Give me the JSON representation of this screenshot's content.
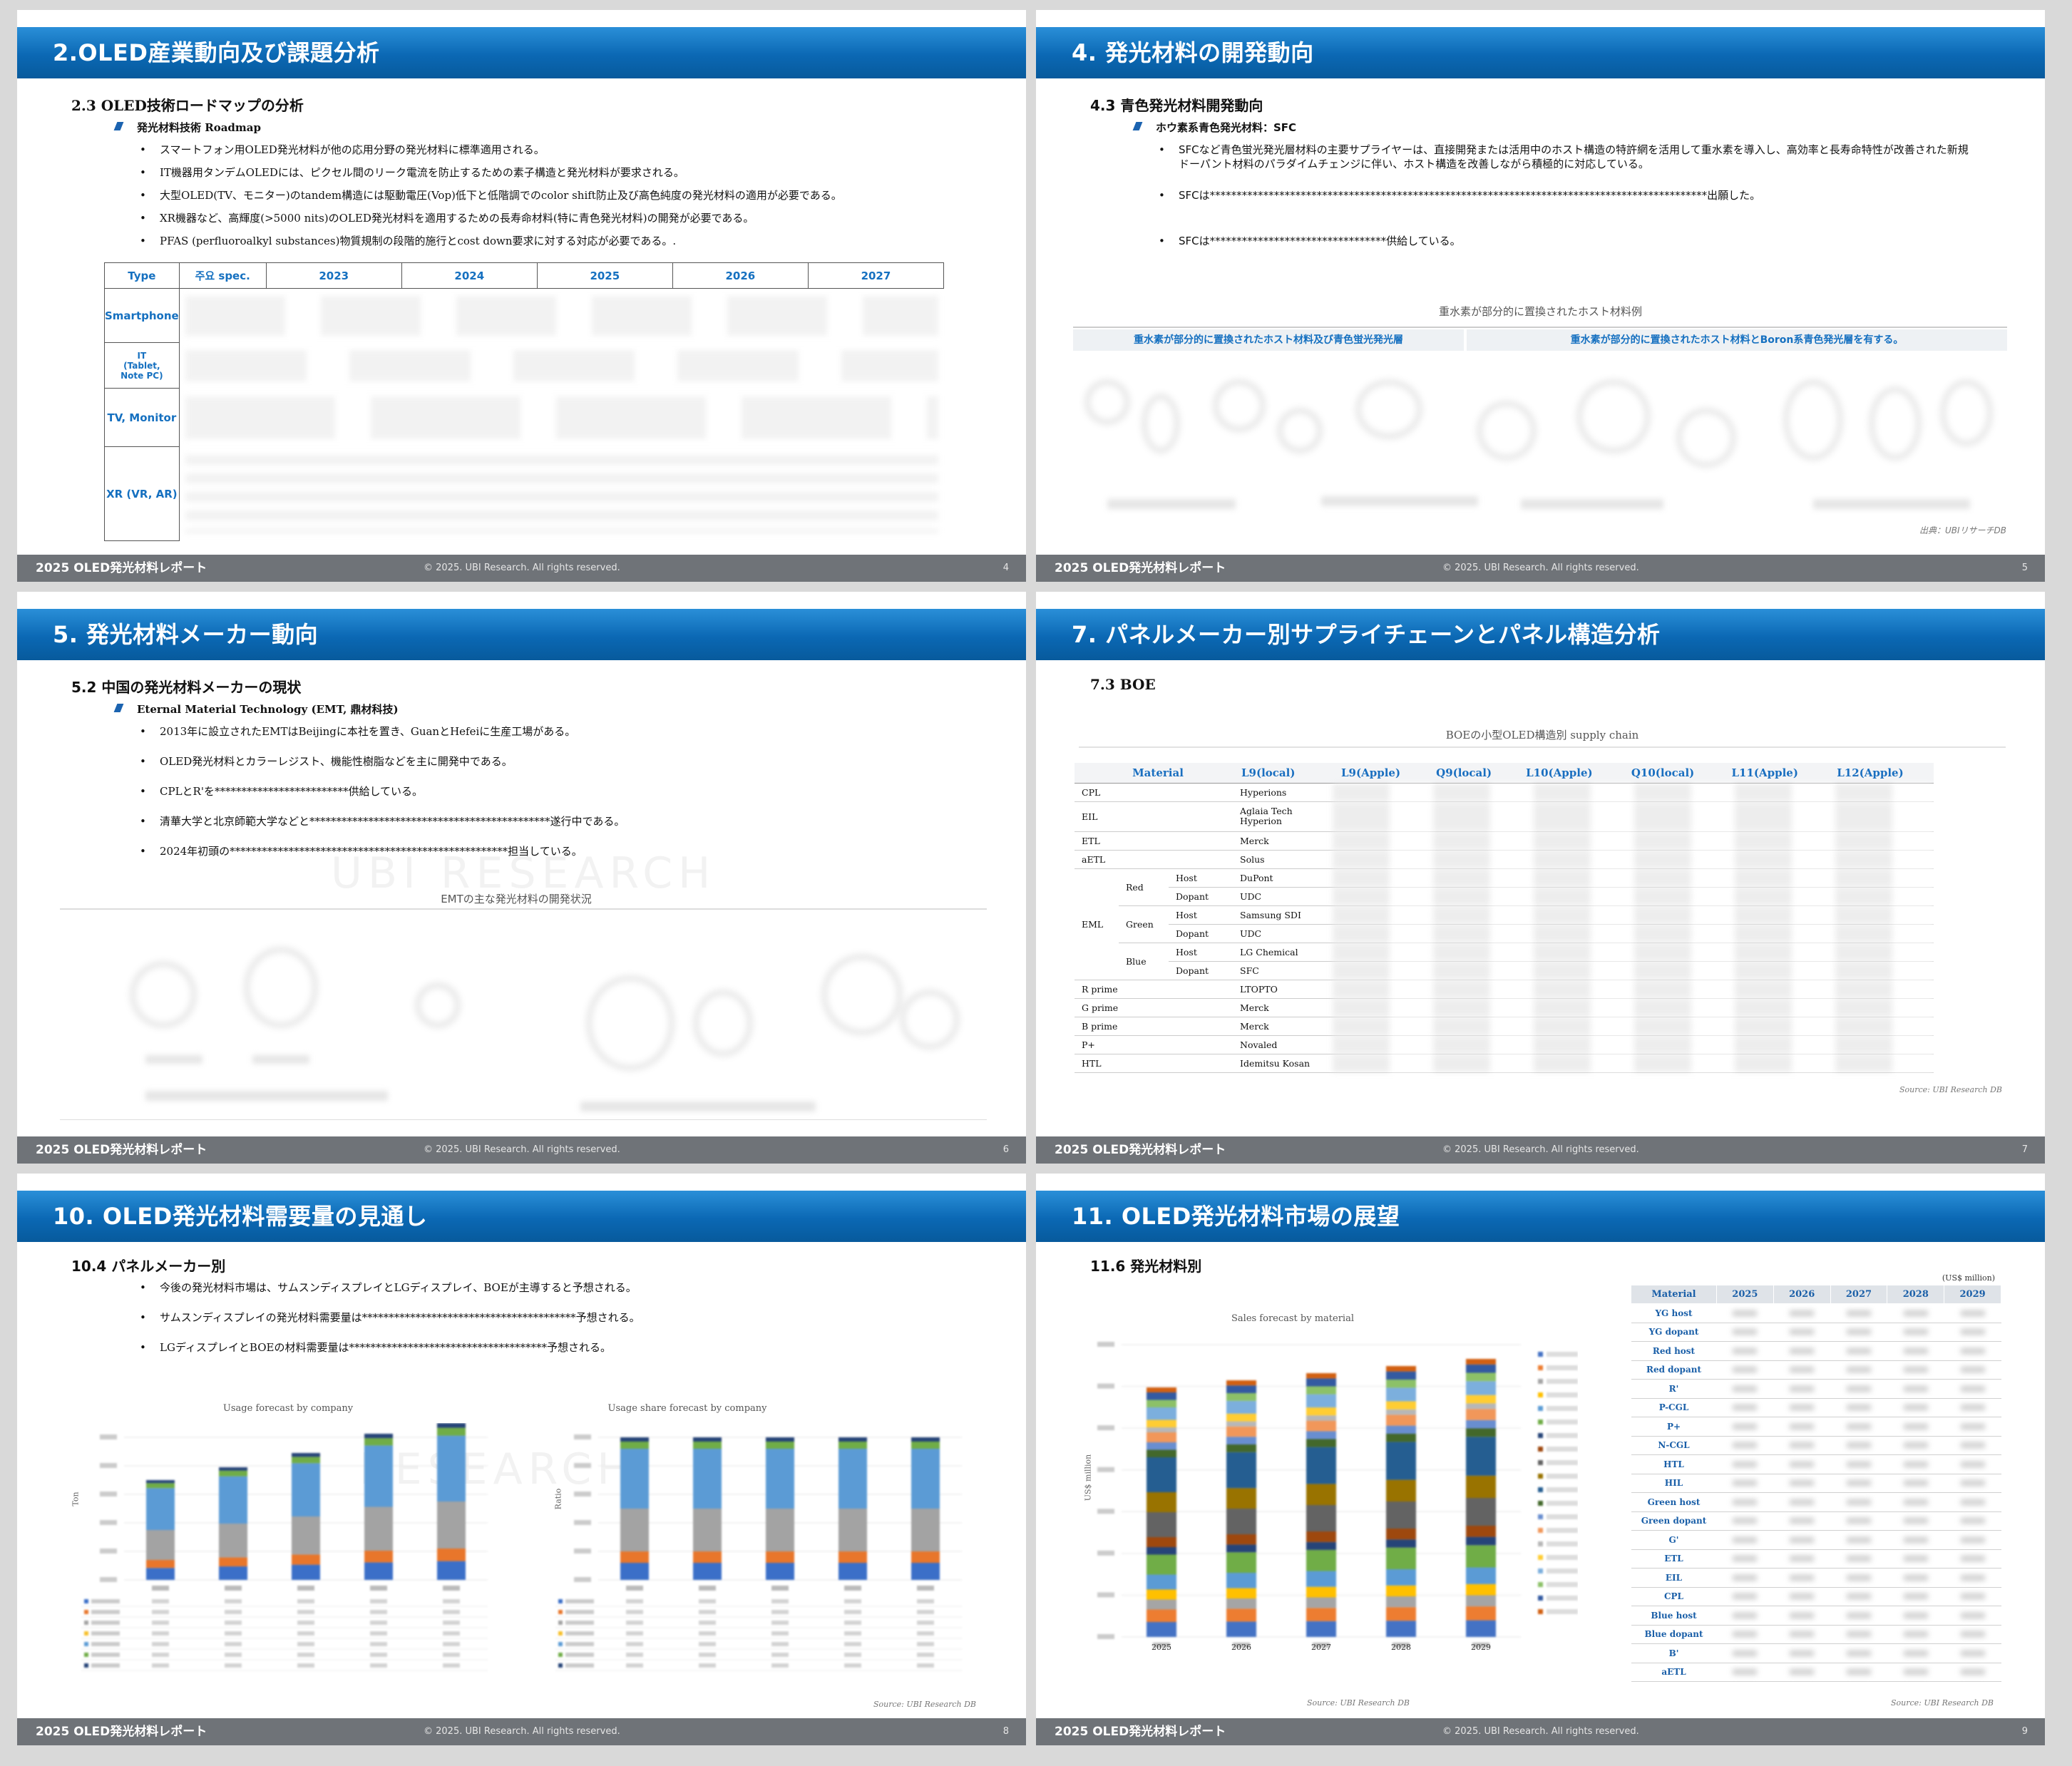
{
  "slides": {
    "s4": {
      "header": "2.OLED産業動向及び課題分析",
      "subtitle": "2.3 OLED技術ロードマップの分析",
      "section": "発光材料技術 Roadmap",
      "bullets": [
        "スマートフォン用OLED発光材料が他の応用分野の発光材料に標準適用される。",
        "IT機器用タンデムOLEDには、ピクセル間のリーク電流を防止するための素子構造と発光材料が要求される。",
        "大型OLED(TV、モニター)のtandem構造には駆動電圧(Vop)低下と低階調でのcolor shift防止及び高色純度の発光材料の適用が必要である。",
        "XR機器など、高輝度(>5000 nits)のOLED発光材料を適用するための長寿命材料(特に青色発光材料)の開発が必要である。",
        "PFAS (perfluoroalkyl substances)物質規制の段階的施行とcost down要求に対する対応が必要である。."
      ],
      "table": {
        "headers": [
          "Type",
          "주요 spec.",
          "2023",
          "2024",
          "2025",
          "2026",
          "2027"
        ],
        "rows": [
          "Smartphone",
          "IT\n(Tablet,\nNote PC)",
          "TV, Monitor",
          "XR (VR, AR)"
        ]
      },
      "page": "4"
    },
    "s5": {
      "header": "4. 発光材料の開発動向",
      "subtitle": "4.3 青色発光材料開発動向",
      "section": "ホウ素系青色発光材料：SFC",
      "bullets": [
        "SFCなど青色蛍光発光層材料の主要サプライヤーは、直接開発または活用中のホスト構造の特許網を活用して重水素を導入し、高効率と長寿命特性が改善された新規ドーパント材料のパラダイムチェンジに伴い、ホスト構造を改善しながら積極的に対応している。",
        "SFCは*********************************************************************************************出願した。",
        "SFCは*********************************供給している。"
      ],
      "figure_caption": "重水素が部分的に置換されたホスト材料例",
      "figure_left": "重水素が部分的に置換されたホスト材料及び青色蛍光発光層",
      "figure_right": "重水素が部分的に置換されたホスト材料とBoron系青色発光層を有する。",
      "source": "出典：UBIリサーチDB",
      "page": "5"
    },
    "s6": {
      "header": "5. 発光材料メーカー動向",
      "subtitle": "5.2 中国の発光材料メーカーの現状",
      "section": "Eternal Material Technology (EMT, 鼎材科技)",
      "bullets": [
        "2013年に設立されたEMTはBeijingに本社を置き、GuanとHefeiに生産工場がある。",
        "OLED発光材料とカラーレジスト、機能性樹脂などを主に開発中である。",
        "CPLとR'を*************************供給している。",
        "清華大学と北京師範大学などと*********************************************遂行中である。",
        "2024年初頭の****************************************************担当している。"
      ],
      "figure_caption": "EMTの主な発光材料の開発状況",
      "page": "6"
    },
    "s7": {
      "header": "7. パネルメーカー別サプライチェーンとパネル構造分析",
      "subtitle": "7.3 BOE",
      "figure_caption": "BOEの小型OLED構造別 supply chain",
      "table": {
        "headers": [
          "Material",
          "L9(local)",
          "L9(Apple)",
          "Q9(local)",
          "L10(Apple)",
          "Q10(local)",
          "L11(Apple)",
          "L12(Apple)"
        ],
        "rows": [
          {
            "material": "CPL",
            "l9": "Hyperions"
          },
          {
            "material": "EIL",
            "l9": "Aglaia Tech\nHyperion"
          },
          {
            "material": "ETL",
            "l9": "Merck"
          },
          {
            "material": "aETL",
            "l9": "Solus"
          },
          {
            "material": "EML",
            "color": "Red",
            "layer": "Host",
            "l9": "DuPont"
          },
          {
            "material": "EML",
            "color": "Red",
            "layer": "Dopant",
            "l9": "UDC"
          },
          {
            "material": "EML",
            "color": "Green",
            "layer": "Host",
            "l9": "Samsung SDI"
          },
          {
            "material": "EML",
            "color": "Green",
            "layer": "Dopant",
            "l9": "UDC"
          },
          {
            "material": "EML",
            "color": "Blue",
            "layer": "Host",
            "l9": "LG Chemical"
          },
          {
            "material": "EML",
            "color": "Blue",
            "layer": "Dopant",
            "l9": "SFC"
          },
          {
            "material": "R prime",
            "l9": "LTOPTO"
          },
          {
            "material": "G prime",
            "l9": "Merck"
          },
          {
            "material": "B prime",
            "l9": "Merck"
          },
          {
            "material": "P+",
            "l9": "Novaled"
          },
          {
            "material": "HTL",
            "l9": "Idemitsu Kosan"
          }
        ]
      },
      "source": "Source: UBI Research DB",
      "page": "7"
    },
    "s8": {
      "header": "10. OLED発光材料需要量の見通し",
      "subtitle": "10.4 パネルメーカー別",
      "bullets": [
        "今後の発光材料市場は、サムスンディスプレイとLGディスプレイ、BOEが主導すると予想される。",
        "サムスンディスプレイの発光材料需要量は****************************************予想される。",
        "LGディスプレイとBOEの材料需要量は*************************************予想される。"
      ],
      "chart_left_title": "Usage forecast by company",
      "chart_left_ylabel": "Ton",
      "chart_right_title": "Usage share forecast by company",
      "chart_right_ylabel": "Ratio",
      "source": "Source: UBI Research DB",
      "page": "8"
    },
    "s9": {
      "header": "11. OLED発光材料市場の展望",
      "subtitle": "11.6 発光材料別",
      "unit": "(US$ million)",
      "chart_title": "Sales forecast by material",
      "chart_ylabel": "US$ million",
      "table_headers": [
        "Material",
        "2025",
        "2026",
        "2027",
        "2028",
        "2029"
      ],
      "table_rows": [
        "YG host",
        "YG dopant",
        "Red host",
        "Red dopant",
        "R'",
        "P-CGL",
        "P+",
        "N-CGL",
        "HTL",
        "HIL",
        "Green host",
        "Green dopant",
        "G'",
        "ETL",
        "EIL",
        "CPL",
        "Blue host",
        "Blue dopant",
        "B'",
        "aETL"
      ],
      "source": "Source: UBI Research DB",
      "page": "9"
    }
  },
  "footer": {
    "left": "2025 OLED発光材料レポート",
    "center": "© 2025. UBI Research. All rights reserved."
  },
  "colors": {
    "header": "#0b68b4",
    "footer": "#6f7378",
    "accent": "#1570c0"
  },
  "chart_data": [
    {
      "type": "bar",
      "x": [
        "2025",
        "2026",
        "2027",
        "2028",
        "2029"
      ],
      "title": "Usage forecast by company",
      "ylabel": "Ton"
    },
    {
      "type": "bar",
      "x": [
        "2025",
        "2026",
        "2027",
        "2028",
        "2029"
      ],
      "title": "Usage share forecast by company",
      "ylabel": "Ratio"
    },
    {
      "type": "bar",
      "x": [
        "2025",
        "2026",
        "2027",
        "2028",
        "2029"
      ],
      "title": "Sales forecast by material",
      "ylabel": "US$ million"
    }
  ]
}
